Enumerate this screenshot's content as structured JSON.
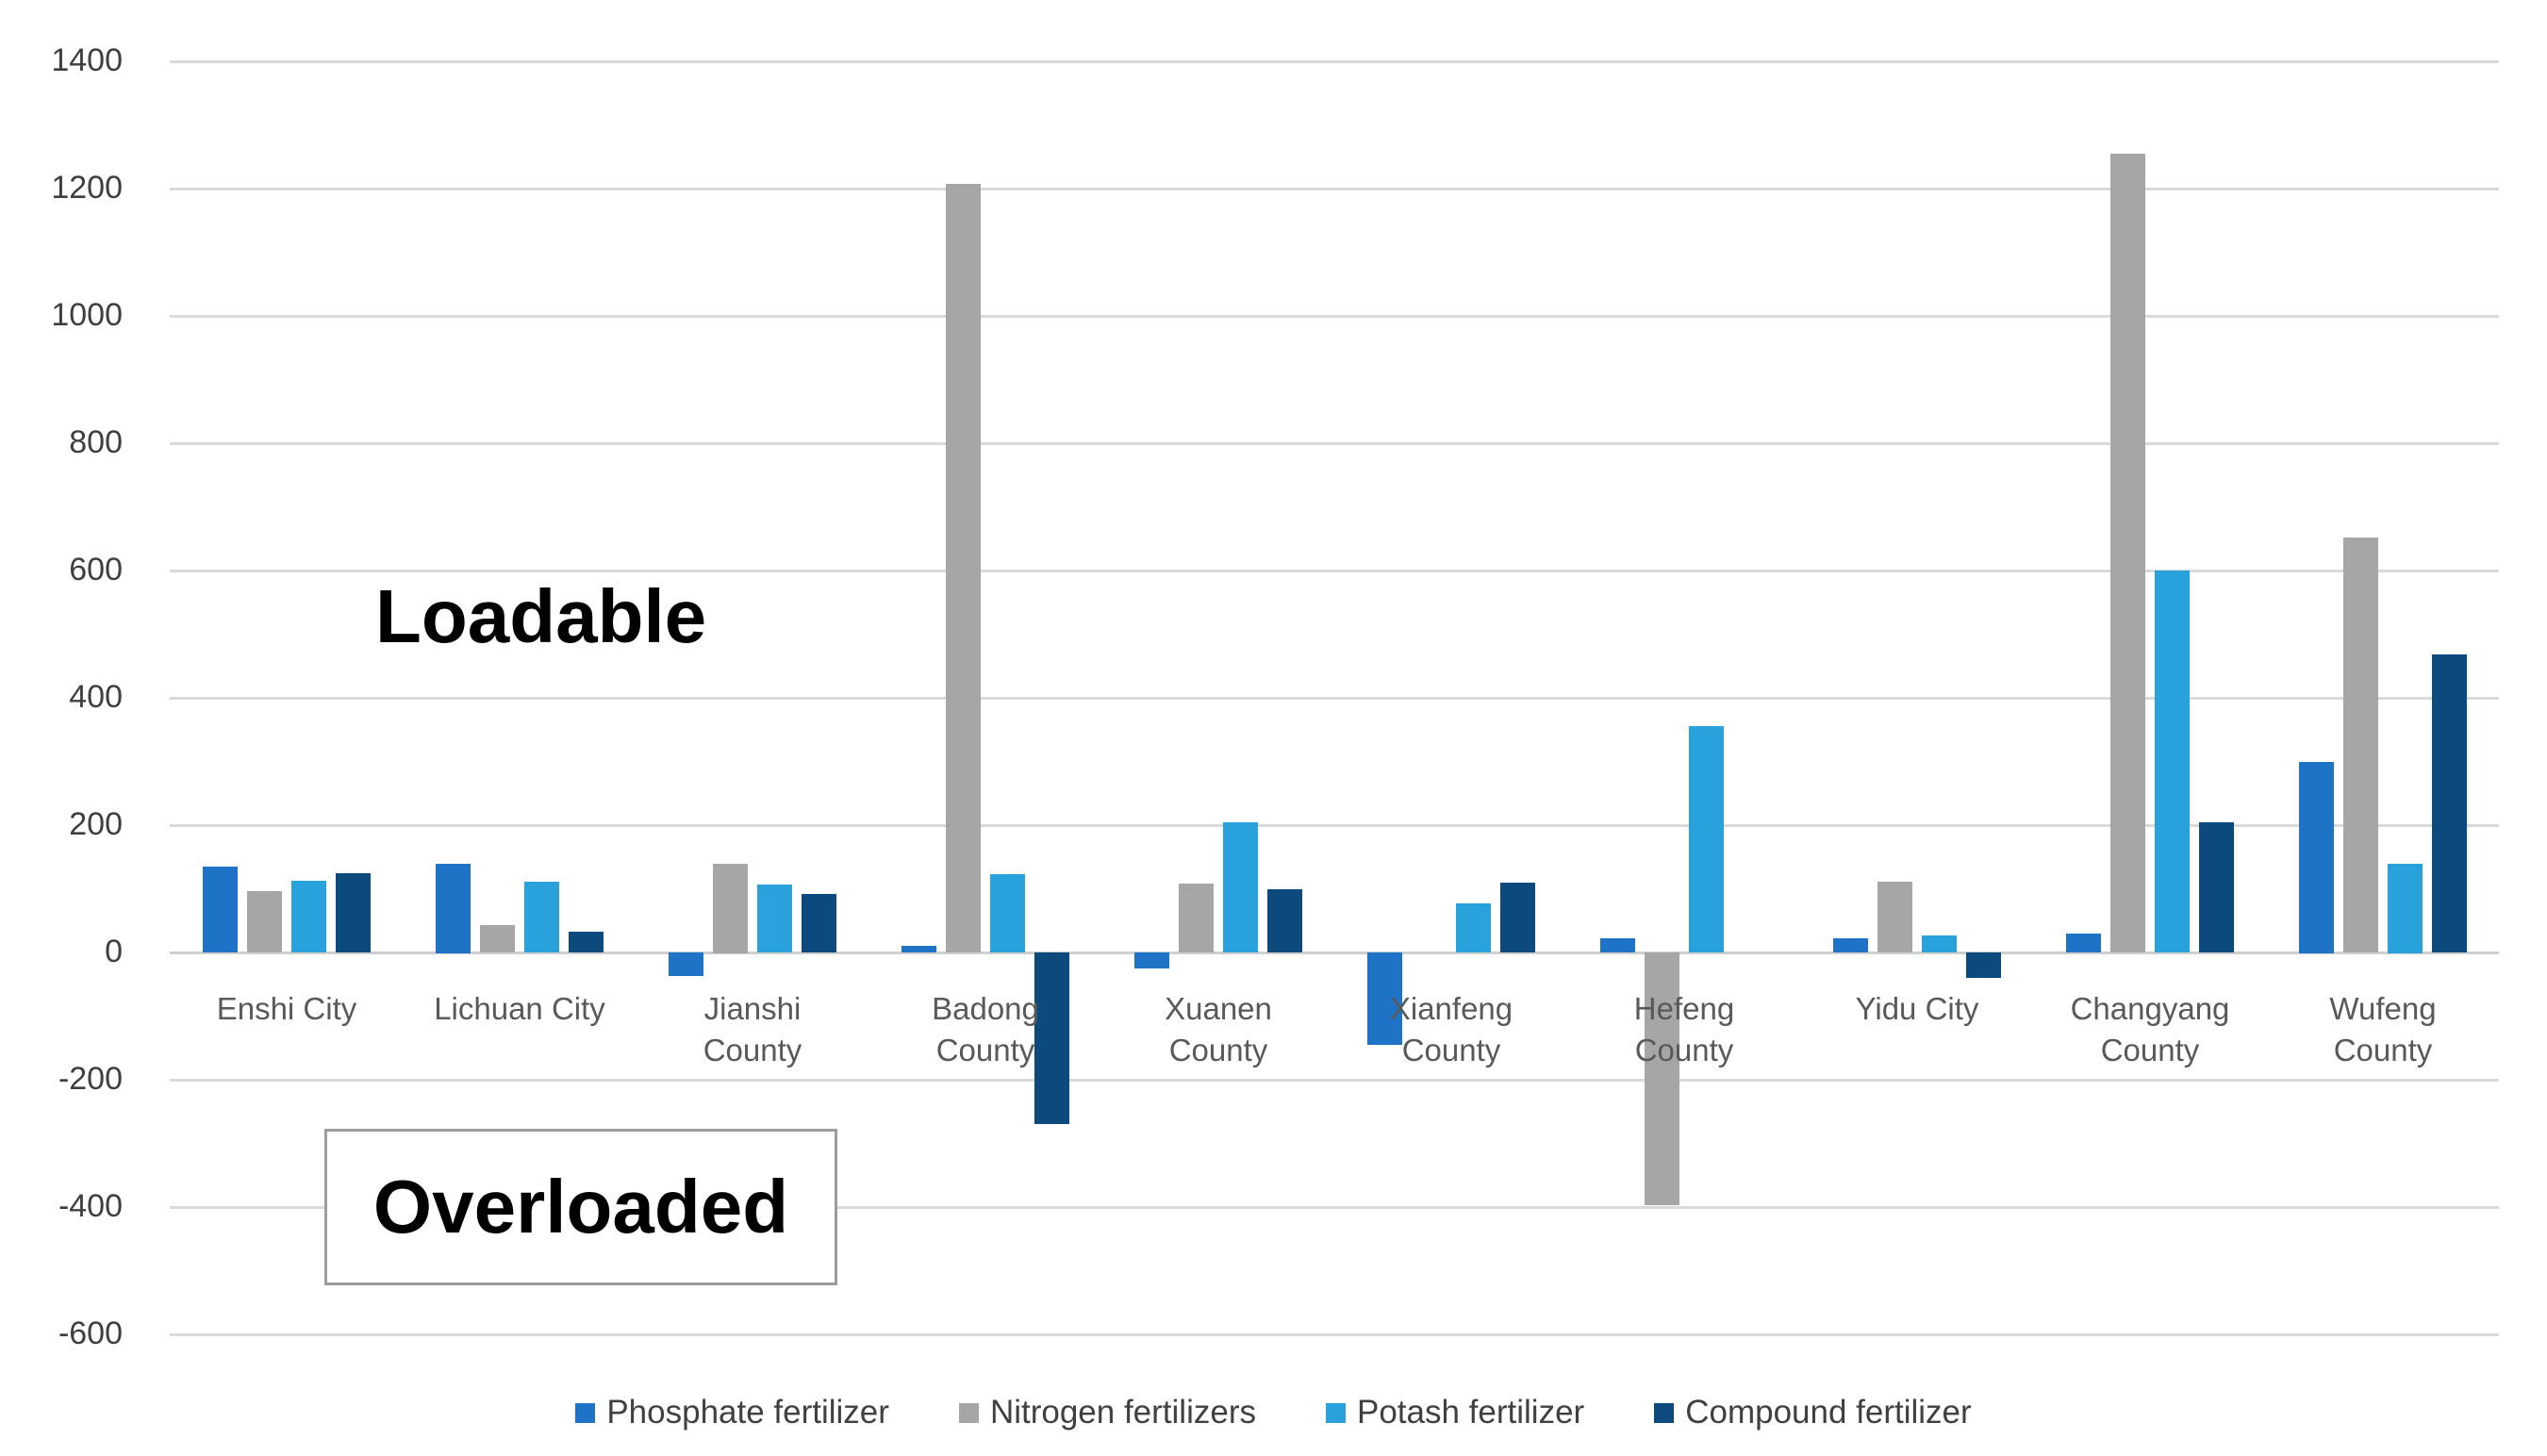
{
  "chart_data": {
    "type": "bar",
    "title": "",
    "xlabel": "",
    "ylabel": "",
    "categories": [
      "Enshi City",
      "Lichuan City",
      "Jianshi County",
      "Badong County",
      "Xuanen County",
      "Xianfeng County",
      "Hefeng County",
      "Yidu City",
      "Changyang County",
      "Wufeng County"
    ],
    "series": [
      {
        "name": "Phosphate fertilizer",
        "color": "#1e73c6",
        "values": [
          135,
          140,
          -37,
          10,
          -25,
          -145,
          22,
          22,
          30,
          300
        ]
      },
      {
        "name": "Nitrogen fertilizers",
        "color": "#a6a6a6",
        "values": [
          96,
          43,
          140,
          1207,
          108,
          0,
          -397,
          111,
          1255,
          652
        ]
      },
      {
        "name": "Potash fertilizer",
        "color": "#29a2dc",
        "values": [
          113,
          111,
          107,
          123,
          205,
          77,
          355,
          27,
          600,
          140
        ]
      },
      {
        "name": "Compound fertilizer",
        "color": "#0c4a7e",
        "values": [
          125,
          33,
          92,
          -270,
          99,
          110,
          0,
          -40,
          205,
          468
        ]
      }
    ],
    "ylim": [
      -600,
      1400
    ],
    "ytick_step": 200,
    "yticks": [
      1400,
      1200,
      1000,
      800,
      600,
      400,
      200,
      0,
      -200,
      -400,
      -600
    ],
    "grid": true,
    "gridline_color": "#d9d9d9",
    "zeroline_color": "#cfcfcf",
    "legend_position": "bottom",
    "annotations": [
      {
        "text": "Loadable",
        "style": "plain"
      },
      {
        "text": "Overloaded",
        "style": "boxed"
      }
    ]
  }
}
